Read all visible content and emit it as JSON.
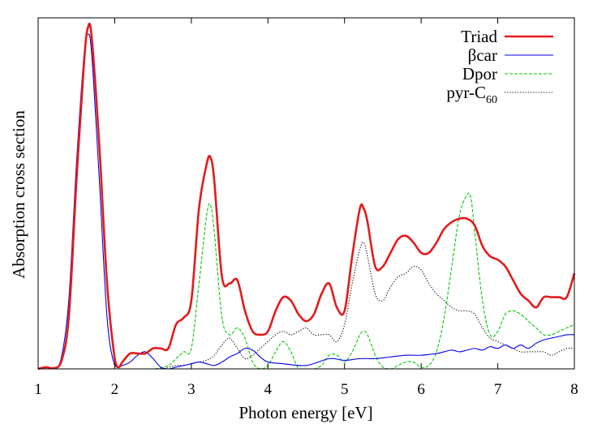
{
  "chart_data": {
    "type": "line",
    "xlabel": "Photon energy [eV]",
    "ylabel": "Absorption cross section",
    "xlim": [
      1,
      8
    ],
    "ylim": [
      0,
      1
    ],
    "xticks": [
      "1",
      "2",
      "3",
      "4",
      "5",
      "6",
      "7",
      "8"
    ],
    "y_tick_labels": false,
    "legend_position": "top-right",
    "grid": false,
    "series": [
      {
        "name": "Triad",
        "color": "#e41a1c",
        "style": "solid-thick",
        "legend_label": "Triad",
        "x": [
          1.0,
          1.1,
          1.2,
          1.3,
          1.4,
          1.5,
          1.6,
          1.65,
          1.7,
          1.8,
          1.9,
          2.0,
          2.05,
          2.1,
          2.2,
          2.3,
          2.4,
          2.5,
          2.6,
          2.7,
          2.8,
          2.9,
          3.0,
          3.1,
          3.2,
          3.25,
          3.3,
          3.4,
          3.5,
          3.6,
          3.7,
          3.8,
          3.9,
          4.0,
          4.1,
          4.2,
          4.3,
          4.4,
          4.5,
          4.6,
          4.7,
          4.8,
          4.9,
          5.0,
          5.1,
          5.2,
          5.25,
          5.3,
          5.4,
          5.5,
          5.6,
          5.7,
          5.8,
          5.9,
          6.0,
          6.1,
          6.2,
          6.3,
          6.4,
          6.5,
          6.6,
          6.7,
          6.8,
          6.9,
          7.0,
          7.1,
          7.2,
          7.3,
          7.4,
          7.5,
          7.6,
          7.7,
          7.8,
          7.9,
          8.0
        ],
        "y": [
          0.0,
          0.005,
          0.002,
          0.02,
          0.15,
          0.55,
          0.9,
          1.0,
          0.97,
          0.65,
          0.25,
          0.03,
          0.005,
          0.02,
          0.045,
          0.045,
          0.045,
          0.06,
          0.06,
          0.06,
          0.13,
          0.15,
          0.2,
          0.47,
          0.6,
          0.62,
          0.55,
          0.27,
          0.25,
          0.26,
          0.17,
          0.11,
          0.1,
          0.11,
          0.17,
          0.21,
          0.2,
          0.16,
          0.14,
          0.16,
          0.22,
          0.25,
          0.18,
          0.17,
          0.33,
          0.47,
          0.47,
          0.43,
          0.3,
          0.3,
          0.34,
          0.38,
          0.39,
          0.37,
          0.34,
          0.34,
          0.37,
          0.41,
          0.43,
          0.44,
          0.44,
          0.42,
          0.36,
          0.33,
          0.32,
          0.3,
          0.26,
          0.22,
          0.2,
          0.18,
          0.21,
          0.21,
          0.21,
          0.21,
          0.28
        ]
      },
      {
        "name": "βcar",
        "color": "#0000ee",
        "style": "solid-thin",
        "legend_label": "βcar",
        "x": [
          1.0,
          1.2,
          1.3,
          1.4,
          1.5,
          1.6,
          1.65,
          1.7,
          1.8,
          1.9,
          2.0,
          2.1,
          2.2,
          2.3,
          2.4,
          2.5,
          2.6,
          2.7,
          2.8,
          2.9,
          3.0,
          3.1,
          3.2,
          3.3,
          3.4,
          3.5,
          3.6,
          3.7,
          3.8,
          3.9,
          4.0,
          4.2,
          4.5,
          4.8,
          5.0,
          5.2,
          5.4,
          5.6,
          5.8,
          6.0,
          6.2,
          6.3,
          6.4,
          6.5,
          6.6,
          6.7,
          6.8,
          6.9,
          7.0,
          7.1,
          7.2,
          7.3,
          7.4,
          7.5,
          7.6,
          7.7,
          7.8,
          7.9,
          8.0
        ],
        "y": [
          0.0,
          0.0,
          0.03,
          0.2,
          0.6,
          0.92,
          0.98,
          0.92,
          0.55,
          0.15,
          0.01,
          0.01,
          0.02,
          0.04,
          0.05,
          0.03,
          0.005,
          0.0,
          0.005,
          0.01,
          0.015,
          0.02,
          0.015,
          0.01,
          0.02,
          0.035,
          0.045,
          0.06,
          0.055,
          0.035,
          0.02,
          0.015,
          0.01,
          0.03,
          0.025,
          0.03,
          0.03,
          0.035,
          0.04,
          0.04,
          0.045,
          0.05,
          0.055,
          0.05,
          0.055,
          0.06,
          0.055,
          0.065,
          0.06,
          0.07,
          0.06,
          0.07,
          0.06,
          0.075,
          0.085,
          0.09,
          0.095,
          0.1,
          0.1
        ]
      },
      {
        "name": "Dpor",
        "color": "#00cc00",
        "style": "dashed",
        "legend_label": "Dpor",
        "x": [
          1.0,
          2.0,
          2.5,
          2.7,
          2.8,
          2.9,
          3.0,
          3.1,
          3.2,
          3.25,
          3.3,
          3.4,
          3.5,
          3.6,
          3.7,
          3.8,
          3.9,
          4.0,
          4.1,
          4.2,
          4.3,
          4.4,
          4.5,
          4.6,
          4.7,
          4.8,
          4.9,
          5.0,
          5.1,
          5.2,
          5.25,
          5.3,
          5.4,
          5.5,
          5.6,
          5.7,
          5.8,
          5.9,
          6.0,
          6.1,
          6.2,
          6.3,
          6.4,
          6.5,
          6.6,
          6.65,
          6.7,
          6.8,
          6.9,
          7.0,
          7.1,
          7.2,
          7.3,
          7.4,
          7.5,
          7.6,
          7.7,
          7.8,
          7.9,
          8.0
        ],
        "y": [
          0.0,
          0.0,
          0.0,
          0.01,
          0.03,
          0.05,
          0.06,
          0.25,
          0.45,
          0.48,
          0.4,
          0.15,
          0.1,
          0.12,
          0.09,
          0.02,
          0.0,
          0.01,
          0.05,
          0.08,
          0.05,
          0.0,
          0.0,
          0.0,
          0.01,
          0.04,
          0.04,
          0.02,
          0.05,
          0.1,
          0.11,
          0.1,
          0.04,
          0.005,
          0.0,
          0.01,
          0.02,
          0.02,
          0.005,
          0.01,
          0.05,
          0.15,
          0.3,
          0.45,
          0.51,
          0.5,
          0.4,
          0.2,
          0.1,
          0.11,
          0.16,
          0.17,
          0.16,
          0.14,
          0.12,
          0.1,
          0.1,
          0.11,
          0.12,
          0.13
        ]
      },
      {
        "name": "pyr-C60",
        "color": "#000000",
        "style": "dotted",
        "legend_label": "pyr-C",
        "legend_sub": "60",
        "x": [
          1.0,
          2.5,
          2.7,
          2.8,
          2.9,
          3.0,
          3.1,
          3.2,
          3.3,
          3.4,
          3.5,
          3.6,
          3.7,
          3.8,
          3.9,
          4.0,
          4.1,
          4.2,
          4.3,
          4.4,
          4.5,
          4.6,
          4.7,
          4.8,
          4.9,
          5.0,
          5.1,
          5.2,
          5.25,
          5.3,
          5.4,
          5.5,
          5.6,
          5.7,
          5.8,
          5.9,
          6.0,
          6.1,
          6.2,
          6.3,
          6.4,
          6.5,
          6.6,
          6.7,
          6.8,
          6.9,
          7.0,
          7.1,
          7.2,
          7.3,
          7.4,
          7.5,
          7.6,
          7.7,
          7.8,
          7.9,
          8.0
        ],
        "y": [
          0.0,
          0.0,
          0.005,
          0.01,
          0.01,
          0.015,
          0.02,
          0.025,
          0.04,
          0.07,
          0.09,
          0.06,
          0.03,
          0.04,
          0.06,
          0.08,
          0.1,
          0.11,
          0.1,
          0.11,
          0.12,
          0.1,
          0.1,
          0.1,
          0.08,
          0.13,
          0.25,
          0.35,
          0.37,
          0.33,
          0.22,
          0.2,
          0.24,
          0.27,
          0.28,
          0.3,
          0.29,
          0.25,
          0.22,
          0.2,
          0.18,
          0.17,
          0.17,
          0.16,
          0.12,
          0.09,
          0.08,
          0.07,
          0.06,
          0.05,
          0.05,
          0.05,
          0.05,
          0.04,
          0.05,
          0.06,
          0.06
        ]
      }
    ]
  }
}
